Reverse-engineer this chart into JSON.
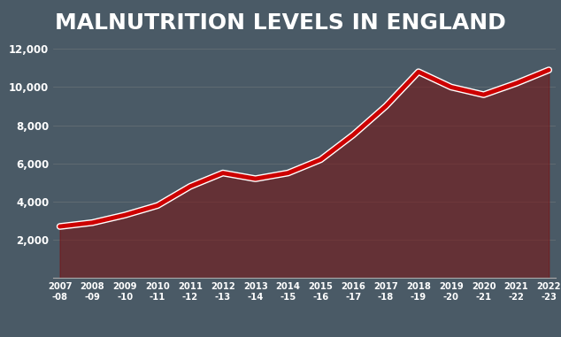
{
  "title": "MALNUTRITION LEVELS IN ENGLAND",
  "title_bg_color": "#8B1A1A",
  "title_text_color": "#FFFFFF",
  "bg_color": "#4a5a66",
  "fill_color": "#7a1010",
  "line_color": "#CC0000",
  "x_labels": [
    "2007\n-08",
    "2008\n-09",
    "2009\n-10",
    "2010\n-11",
    "2011\n-12",
    "2012\n-13",
    "2013\n-14",
    "2014\n-15",
    "2015\n-16",
    "2016\n-17",
    "2017\n-18",
    "2018\n-19",
    "2019\n-20",
    "2020\n-21",
    "2021\n-22",
    "2022\n-23"
  ],
  "y_values": [
    2700,
    2900,
    3300,
    3800,
    4800,
    5500,
    5200,
    5500,
    6200,
    7500,
    9000,
    10800,
    10000,
    9600,
    10200,
    10896
  ],
  "ylim": [
    0,
    12000
  ],
  "yticks": [
    2000,
    4000,
    6000,
    8000,
    10000,
    12000
  ],
  "grid_color": "#888888",
  "tick_label_color": "#FFFFFF",
  "line_width": 3.5,
  "fill_alpha": 0.55,
  "title_fontsize": 18
}
